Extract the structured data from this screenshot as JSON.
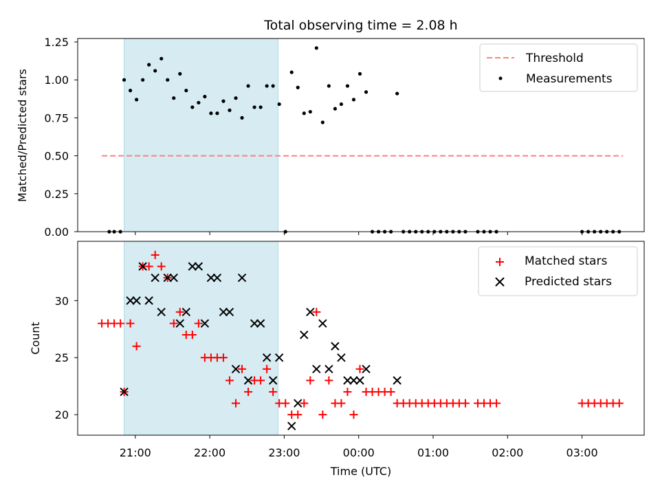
{
  "chart_data": [
    {
      "type": "scatter",
      "title": "Total observing time = 2.08 h",
      "xlabel": "",
      "ylabel": "Matched/Predicted stars",
      "ylim": [
        0,
        1.25
      ],
      "yticks": [
        "0.00",
        "0.25",
        "0.50",
        "0.75",
        "1.00",
        "1.25"
      ],
      "shaded_span": [
        "20:51",
        "22:55"
      ],
      "legend": {
        "placement": "top-right",
        "entries": [
          "Threshold",
          "Measurements"
        ]
      },
      "threshold": {
        "name": "Threshold",
        "y": 0.5,
        "x_range": [
          "20:33",
          "03:33"
        ],
        "color": "#ff7f7f",
        "style": "dashed"
      },
      "series": [
        {
          "name": "Measurements",
          "color": "#000000",
          "points": [
            [
              "20:39",
              0.0
            ],
            [
              "20:43",
              0.0
            ],
            [
              "20:48",
              0.0
            ],
            [
              "20:51",
              1.0
            ],
            [
              "20:56",
              0.93
            ],
            [
              "21:01",
              0.87
            ],
            [
              "21:06",
              1.0
            ],
            [
              "21:11",
              1.1
            ],
            [
              "21:16",
              1.06
            ],
            [
              "21:21",
              1.14
            ],
            [
              "21:26",
              1.0
            ],
            [
              "21:31",
              0.88
            ],
            [
              "21:36",
              1.04
            ],
            [
              "21:41",
              0.93
            ],
            [
              "21:46",
              0.82
            ],
            [
              "21:51",
              0.85
            ],
            [
              "21:56",
              0.89
            ],
            [
              "22:01",
              0.78
            ],
            [
              "22:06",
              0.78
            ],
            [
              "22:11",
              0.86
            ],
            [
              "22:16",
              0.8
            ],
            [
              "22:21",
              0.88
            ],
            [
              "22:26",
              0.75
            ],
            [
              "22:31",
              0.96
            ],
            [
              "22:36",
              0.82
            ],
            [
              "22:41",
              0.82
            ],
            [
              "22:46",
              0.96
            ],
            [
              "22:51",
              0.96
            ],
            [
              "22:56",
              0.84
            ],
            [
              "23:01",
              0.0
            ],
            [
              "23:06",
              1.05
            ],
            [
              "23:11",
              0.95
            ],
            [
              "23:16",
              0.78
            ],
            [
              "23:21",
              0.79
            ],
            [
              "23:26",
              1.21
            ],
            [
              "23:31",
              0.72
            ],
            [
              "23:36",
              0.96
            ],
            [
              "23:41",
              0.81
            ],
            [
              "23:46",
              0.84
            ],
            [
              "23:51",
              0.96
            ],
            [
              "23:56",
              0.87
            ],
            [
              "00:01",
              1.04
            ],
            [
              "00:06",
              0.92
            ],
            [
              "00:11",
              0.0
            ],
            [
              "00:16",
              0.0
            ],
            [
              "00:21",
              0.0
            ],
            [
              "00:26",
              0.0
            ],
            [
              "00:31",
              0.91
            ],
            [
              "00:36",
              0.0
            ],
            [
              "00:41",
              0.0
            ],
            [
              "00:46",
              0.0
            ],
            [
              "00:51",
              0.0
            ],
            [
              "00:56",
              0.0
            ],
            [
              "01:01",
              0.0
            ],
            [
              "01:06",
              0.0
            ],
            [
              "01:11",
              0.0
            ],
            [
              "01:16",
              0.0
            ],
            [
              "01:21",
              0.0
            ],
            [
              "01:26",
              0.0
            ],
            [
              "01:36",
              0.0
            ],
            [
              "01:41",
              0.0
            ],
            [
              "01:46",
              0.0
            ],
            [
              "01:51",
              0.0
            ],
            [
              "03:00",
              0.0
            ],
            [
              "03:05",
              0.0
            ],
            [
              "03:10",
              0.0
            ],
            [
              "03:15",
              0.0
            ],
            [
              "03:20",
              0.0
            ],
            [
              "03:25",
              0.0
            ],
            [
              "03:30",
              0.0
            ]
          ]
        }
      ]
    },
    {
      "type": "scatter",
      "title": "",
      "xlabel": "Time (UTC)",
      "ylabel": "Count",
      "ylim": [
        18.2,
        35.2
      ],
      "yticks": [
        "20",
        "25",
        "30"
      ],
      "xticks": [
        "21:00",
        "22:00",
        "23:00",
        "00:00",
        "01:00",
        "02:00",
        "03:00"
      ],
      "shaded_span": [
        "20:51",
        "22:55"
      ],
      "legend": {
        "placement": "top-right",
        "entries": [
          "Matched stars",
          "Predicted stars"
        ]
      },
      "series": [
        {
          "name": "Matched stars",
          "marker": "+",
          "color": "#ff0000",
          "points": [
            [
              "20:33",
              28
            ],
            [
              "20:38",
              28
            ],
            [
              "20:43",
              28
            ],
            [
              "20:48",
              28
            ],
            [
              "20:51",
              22
            ],
            [
              "20:56",
              28
            ],
            [
              "21:01",
              26
            ],
            [
              "21:06",
              33
            ],
            [
              "21:11",
              33
            ],
            [
              "21:16",
              34
            ],
            [
              "21:21",
              33
            ],
            [
              "21:26",
              32
            ],
            [
              "21:31",
              28
            ],
            [
              "21:36",
              29
            ],
            [
              "21:41",
              27
            ],
            [
              "21:46",
              27
            ],
            [
              "21:51",
              28
            ],
            [
              "21:56",
              25
            ],
            [
              "22:01",
              25
            ],
            [
              "22:06",
              25
            ],
            [
              "22:11",
              25
            ],
            [
              "22:16",
              23
            ],
            [
              "22:21",
              21
            ],
            [
              "22:26",
              24
            ],
            [
              "22:31",
              22
            ],
            [
              "22:36",
              23
            ],
            [
              "22:41",
              23
            ],
            [
              "22:46",
              24
            ],
            [
              "22:51",
              22
            ],
            [
              "22:56",
              21
            ],
            [
              "23:01",
              21
            ],
            [
              "23:06",
              20
            ],
            [
              "23:11",
              20
            ],
            [
              "23:16",
              21
            ],
            [
              "23:21",
              23
            ],
            [
              "23:26",
              29
            ],
            [
              "23:31",
              20
            ],
            [
              "23:36",
              23
            ],
            [
              "23:41",
              21
            ],
            [
              "23:46",
              21
            ],
            [
              "23:51",
              22
            ],
            [
              "23:56",
              20
            ],
            [
              "00:01",
              24
            ],
            [
              "00:06",
              22
            ],
            [
              "00:11",
              22
            ],
            [
              "00:16",
              22
            ],
            [
              "00:21",
              22
            ],
            [
              "00:26",
              22
            ],
            [
              "00:31",
              21
            ],
            [
              "00:36",
              21
            ],
            [
              "00:41",
              21
            ],
            [
              "00:46",
              21
            ],
            [
              "00:51",
              21
            ],
            [
              "00:56",
              21
            ],
            [
              "01:01",
              21
            ],
            [
              "01:06",
              21
            ],
            [
              "01:11",
              21
            ],
            [
              "01:16",
              21
            ],
            [
              "01:21",
              21
            ],
            [
              "01:26",
              21
            ],
            [
              "01:36",
              21
            ],
            [
              "01:41",
              21
            ],
            [
              "01:46",
              21
            ],
            [
              "01:51",
              21
            ],
            [
              "03:00",
              21
            ],
            [
              "03:05",
              21
            ],
            [
              "03:10",
              21
            ],
            [
              "03:15",
              21
            ],
            [
              "03:20",
              21
            ],
            [
              "03:25",
              21
            ],
            [
              "03:30",
              21
            ]
          ]
        },
        {
          "name": "Predicted stars",
          "marker": "x",
          "color": "#000000",
          "points": [
            [
              "20:51",
              22
            ],
            [
              "20:56",
              30
            ],
            [
              "21:01",
              30
            ],
            [
              "21:06",
              33
            ],
            [
              "21:11",
              30
            ],
            [
              "21:16",
              32
            ],
            [
              "21:21",
              29
            ],
            [
              "21:26",
              32
            ],
            [
              "21:31",
              32
            ],
            [
              "21:36",
              28
            ],
            [
              "21:41",
              29
            ],
            [
              "21:46",
              33
            ],
            [
              "21:51",
              33
            ],
            [
              "21:56",
              28
            ],
            [
              "22:01",
              32
            ],
            [
              "22:06",
              32
            ],
            [
              "22:11",
              29
            ],
            [
              "22:16",
              29
            ],
            [
              "22:21",
              24
            ],
            [
              "22:26",
              32
            ],
            [
              "22:31",
              23
            ],
            [
              "22:36",
              28
            ],
            [
              "22:41",
              28
            ],
            [
              "22:46",
              25
            ],
            [
              "22:51",
              23
            ],
            [
              "22:56",
              25
            ],
            [
              "23:06",
              19
            ],
            [
              "23:11",
              21
            ],
            [
              "23:16",
              27
            ],
            [
              "23:21",
              29
            ],
            [
              "23:26",
              24
            ],
            [
              "23:31",
              28
            ],
            [
              "23:36",
              24
            ],
            [
              "23:41",
              26
            ],
            [
              "23:46",
              25
            ],
            [
              "23:51",
              23
            ],
            [
              "23:56",
              23
            ],
            [
              "00:01",
              23
            ],
            [
              "00:06",
              24
            ],
            [
              "00:31",
              23
            ]
          ]
        }
      ]
    }
  ]
}
